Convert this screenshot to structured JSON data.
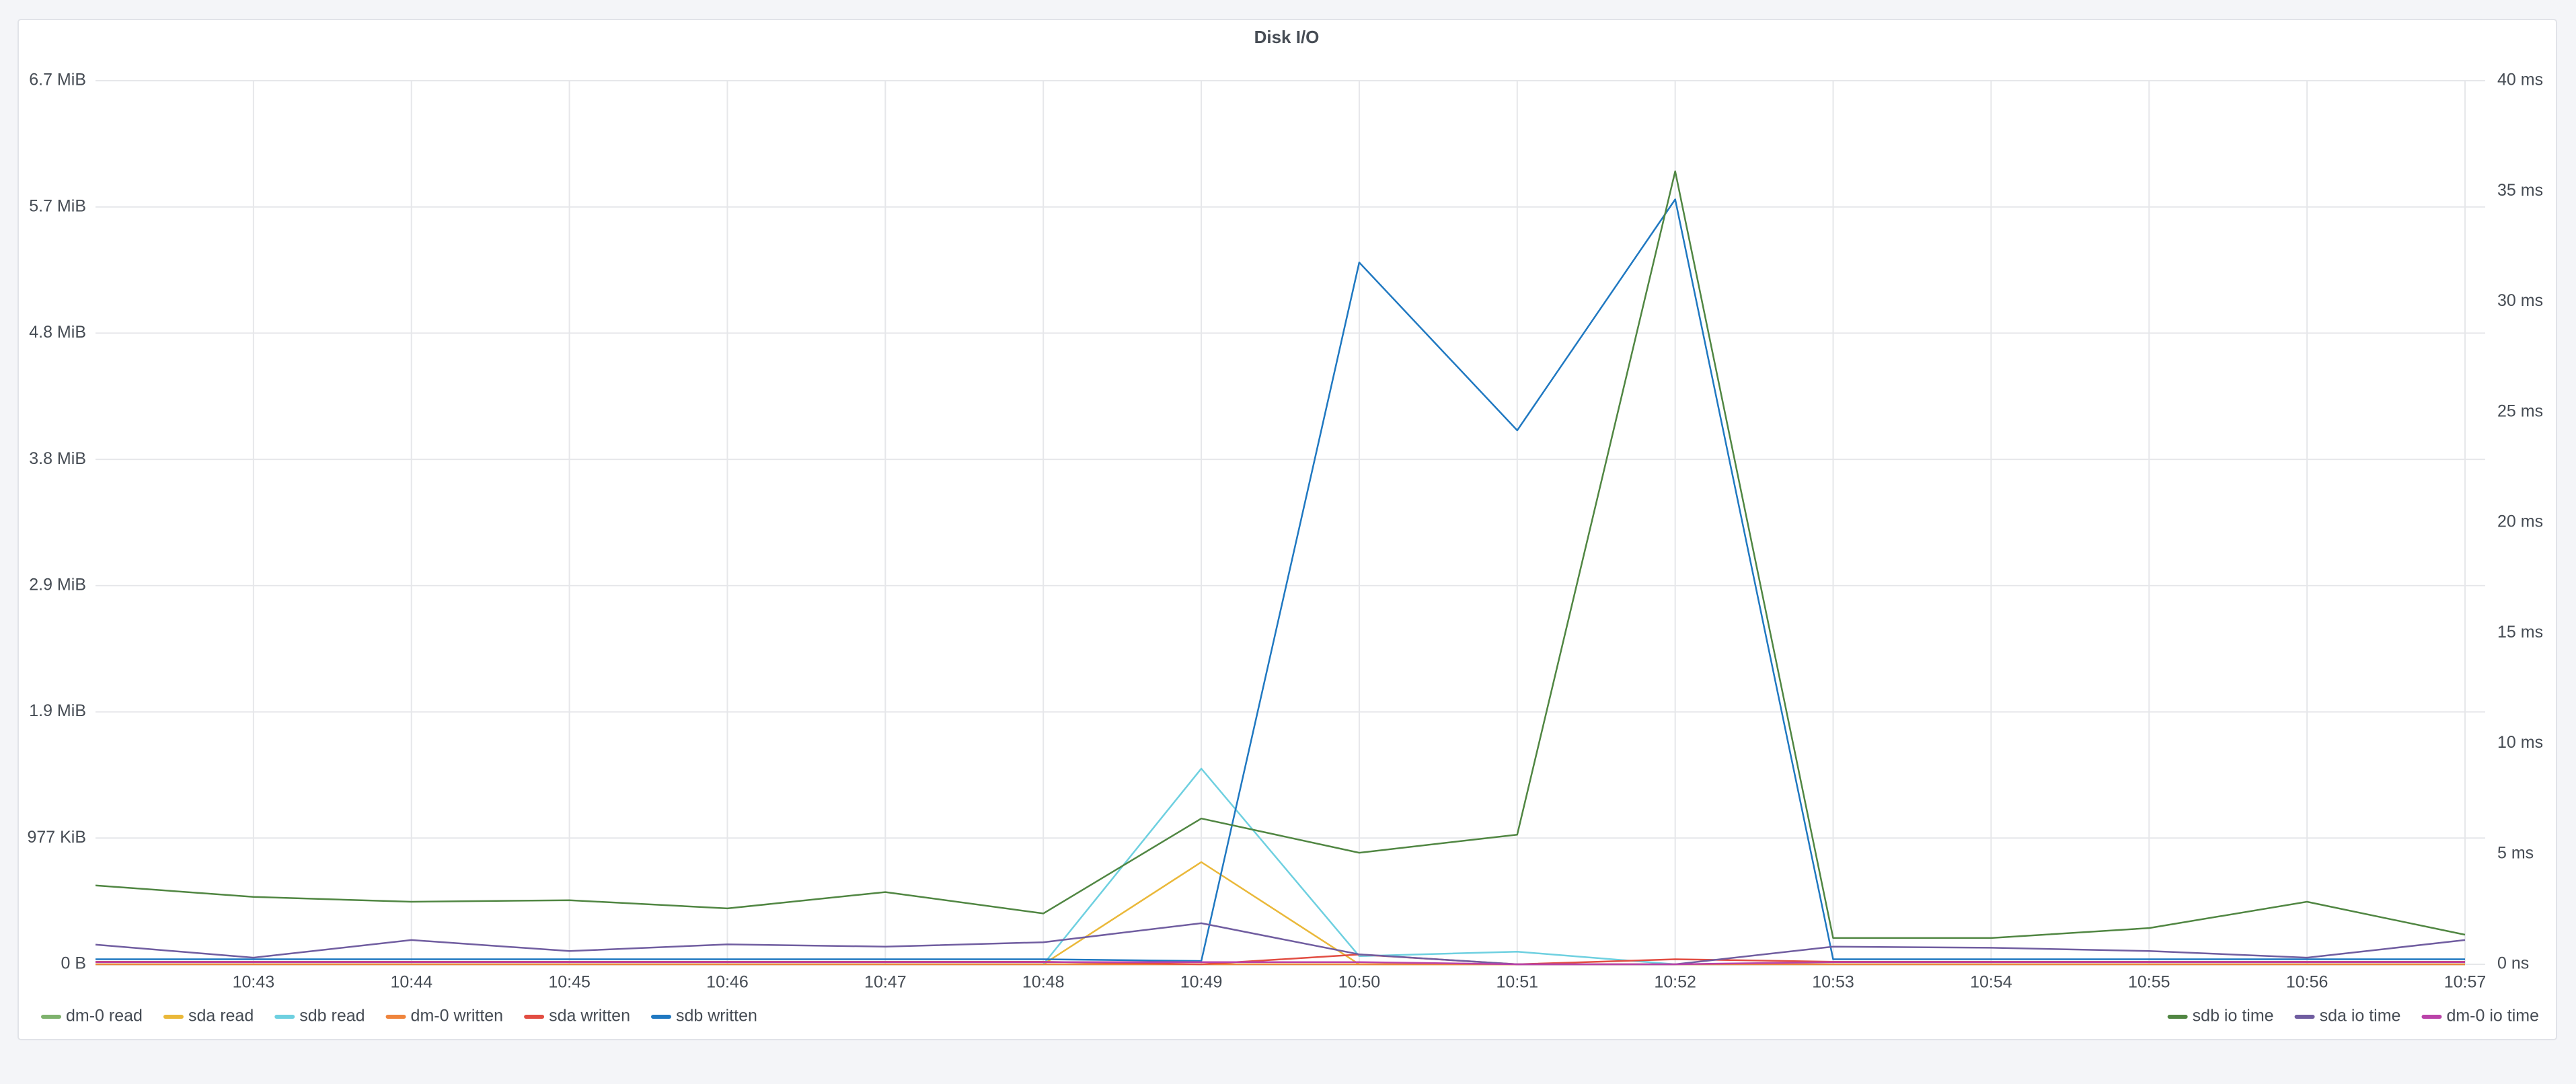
{
  "chart_data": {
    "type": "line",
    "title": "Disk I/O",
    "categories": [
      null,
      "10:43",
      "10:44",
      "10:45",
      "10:46",
      "10:47",
      "10:48",
      "10:49",
      "10:50",
      "10:51",
      "10:52",
      "10:53",
      "10:54",
      "10:55",
      "10:56",
      "10:57"
    ],
    "ylim": [
      0,
      7000000
    ],
    "yticks": [
      {
        "value": 0,
        "label": "0 B"
      },
      {
        "value": 1000000,
        "label": "977 KiB"
      },
      {
        "value": 2000000,
        "label": "1.9 MiB"
      },
      {
        "value": 3000000,
        "label": "2.9 MiB"
      },
      {
        "value": 4000000,
        "label": "3.8 MiB"
      },
      {
        "value": 5000000,
        "label": "4.8 MiB"
      },
      {
        "value": 6000000,
        "label": "5.7 MiB"
      },
      {
        "value": 7000000,
        "label": "6.7 MiB"
      }
    ],
    "y2lim": [
      0,
      40
    ],
    "y2ticks": [
      {
        "value": 0,
        "label": "0 ns"
      },
      {
        "value": 5,
        "label": "5 ms"
      },
      {
        "value": 10,
        "label": "10 ms"
      },
      {
        "value": 15,
        "label": "15 ms"
      },
      {
        "value": 20,
        "label": "20 ms"
      },
      {
        "value": 25,
        "label": "25 ms"
      },
      {
        "value": 30,
        "label": "30 ms"
      },
      {
        "value": 35,
        "label": "35 ms"
      },
      {
        "value": 40,
        "label": "40 ms"
      }
    ],
    "grid": true,
    "series": [
      {
        "name": "dm-0 read",
        "color": "#7eb26d",
        "values": [
          0,
          0,
          0,
          0,
          0,
          0,
          0,
          0,
          0,
          0,
          0,
          0,
          0,
          0,
          0,
          0
        ]
      },
      {
        "name": "sda read",
        "color": "#eab839",
        "values": [
          0,
          0,
          0,
          0,
          0,
          0,
          0,
          810000,
          0,
          0,
          0,
          0,
          0,
          0,
          0,
          0
        ]
      },
      {
        "name": "sdb read",
        "color": "#6ed0e0",
        "values": [
          0,
          0,
          0,
          0,
          0,
          0,
          0,
          1550000,
          65000,
          100000,
          0,
          0,
          0,
          0,
          0,
          0
        ]
      },
      {
        "name": "dm-0 written",
        "color": "#ef843c",
        "values": [
          0,
          0,
          0,
          0,
          0,
          0,
          0,
          0,
          0,
          0,
          0,
          0,
          0,
          0,
          0,
          0
        ]
      },
      {
        "name": "sda written",
        "color": "#e24d42",
        "values": [
          20000,
          20000,
          20000,
          20000,
          20000,
          20000,
          20000,
          0,
          78000,
          0,
          40000,
          20000,
          20000,
          20000,
          20000,
          20000
        ]
      },
      {
        "name": "sdb written",
        "color": "#1f78c1",
        "values": [
          40000,
          40000,
          40000,
          40000,
          40000,
          40000,
          40000,
          26000,
          5560000,
          4230000,
          6060000,
          40000,
          40000,
          40000,
          40000,
          40000
        ]
      },
      {
        "name": "sdb io time",
        "color": "#508642",
        "axis": "y2",
        "values": [
          3.57,
          3.05,
          2.83,
          2.9,
          2.53,
          3.27,
          2.3,
          6.6,
          5.05,
          5.87,
          35.9,
          1.19,
          1.19,
          1.64,
          2.83,
          1.34
        ]
      },
      {
        "name": "sda io time",
        "color": "#705da0",
        "axis": "y2",
        "values": [
          0.89,
          0.3,
          1.1,
          0.6,
          0.9,
          0.8,
          1.0,
          1.86,
          0.45,
          0,
          0,
          0.8,
          0.75,
          0.6,
          0.3,
          1.1
        ]
      },
      {
        "name": "dm-0 io time",
        "color": "#ba43a9",
        "axis": "y2",
        "values": [
          0.1,
          0.1,
          0.1,
          0.1,
          0.1,
          0.1,
          0.1,
          0.1,
          0.1,
          0,
          0,
          0.1,
          0.1,
          0.1,
          0.1,
          0.1
        ]
      }
    ]
  }
}
